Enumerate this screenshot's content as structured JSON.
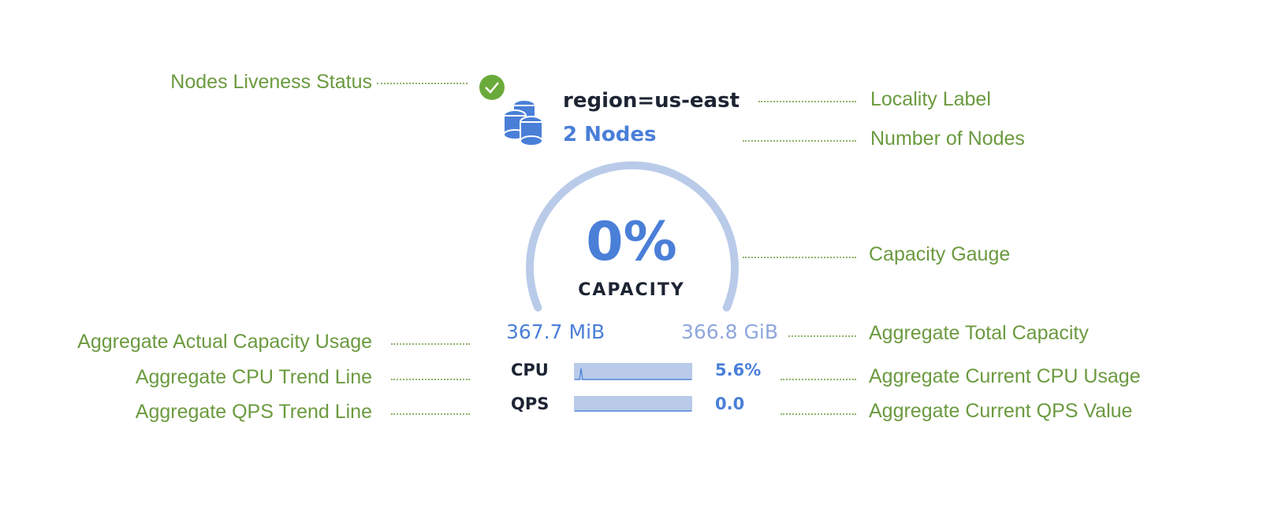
{
  "annotations": {
    "liveness": "Nodes Liveness Status",
    "locality": "Locality Label",
    "nodes": "Number of Nodes",
    "gauge": "Capacity Gauge",
    "usage": "Aggregate Actual Capacity Usage",
    "total": "Aggregate Total Capacity",
    "cpu_trend": "Aggregate CPU Trend Line",
    "cpu_current": "Aggregate Current CPU Usage",
    "qps_trend": "Aggregate QPS Trend Line",
    "qps_current": "Aggregate Current QPS Value"
  },
  "widget": {
    "status_icon": "check-circle-icon",
    "node_icon": "database-icon",
    "locality": "region=us-east",
    "node_count": "2 Nodes",
    "capacity_percent": "0%",
    "capacity_label": "CAPACITY",
    "capacity_fraction": 0,
    "used": "367.7 MiB",
    "total": "366.8 GiB",
    "cpu_label": "CPU",
    "cpu_value": "5.6%",
    "qps_label": "QPS",
    "qps_value": "0.0"
  },
  "colors": {
    "annotation": "#6b9a3f",
    "accent": "#4a7fd8",
    "gauge_track": "#b9cbe9",
    "ok": "#6aaa3a",
    "text": "#1d2433"
  }
}
